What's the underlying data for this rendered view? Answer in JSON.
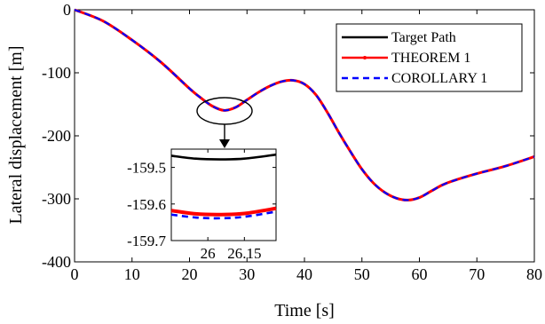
{
  "chart_data": {
    "type": "line",
    "title": "",
    "xlabel": "Time [s]",
    "ylabel": "Lateral displacement [m]",
    "xlim": [
      0,
      80
    ],
    "ylim": [
      -400,
      0
    ],
    "xticks": [
      "0",
      "10",
      "20",
      "30",
      "40",
      "50",
      "60",
      "70",
      "80"
    ],
    "yticks": [
      "0",
      "-100",
      "-200",
      "-300",
      "-400"
    ],
    "grid": false,
    "legend_position": "top-right",
    "x": [
      0,
      5,
      10,
      15,
      20,
      22,
      24,
      26,
      28,
      30,
      32,
      34,
      36,
      38,
      40,
      42,
      44,
      46,
      48,
      50,
      52,
      54,
      56,
      58,
      60,
      62,
      64,
      66,
      70,
      75,
      80
    ],
    "series": [
      {
        "name": "Target Path",
        "color": "#000000",
        "style": "solid",
        "values": [
          0,
          -18,
          -48,
          -83,
          -125,
          -140,
          -153,
          -159.5,
          -155,
          -143,
          -131,
          -121,
          -114,
          -112,
          -118,
          -135,
          -163,
          -195,
          -225,
          -253,
          -275,
          -290,
          -299,
          -302,
          -298,
          -288,
          -278,
          -271,
          -260,
          -248,
          -233
        ]
      },
      {
        "name": "THEOREM 1",
        "color": "#ff0000",
        "style": "solid-marker",
        "values": [
          0,
          -18,
          -48,
          -83,
          -125,
          -140,
          -153,
          -159.6,
          -155,
          -143,
          -131,
          -121,
          -114,
          -112,
          -118,
          -135,
          -163,
          -195,
          -225,
          -253,
          -275,
          -290,
          -299,
          -302,
          -298,
          -288,
          -278,
          -271,
          -260,
          -248,
          -233
        ]
      },
      {
        "name": "COROLLARY 1",
        "color": "#0000ff",
        "style": "dashed",
        "values": [
          0,
          -18,
          -48,
          -83,
          -125,
          -140,
          -153,
          -159.6,
          -155,
          -143,
          -131,
          -121,
          -114,
          -112,
          -118,
          -135,
          -163,
          -195,
          -225,
          -253,
          -275,
          -290,
          -299,
          -302,
          -298,
          -288,
          -278,
          -271,
          -260,
          -248,
          -233
        ]
      }
    ],
    "inset": {
      "xlim": [
        25.85,
        26.28
      ],
      "ylim": [
        -159.7,
        -159.45
      ],
      "xticks": [
        "26",
        "26.15"
      ],
      "yticks": [
        "-159.5",
        "-159.6",
        "-159.7"
      ],
      "x": [
        25.85,
        25.95,
        26.05,
        26.15,
        26.28
      ],
      "series": [
        {
          "name": "Target Path",
          "color": "#000000",
          "style": "solid",
          "values": [
            -159.468,
            -159.476,
            -159.478,
            -159.476,
            -159.465
          ]
        },
        {
          "name": "THEOREM 1",
          "color": "#ff0000",
          "style": "solid",
          "values": [
            -159.618,
            -159.627,
            -159.629,
            -159.626,
            -159.612
          ]
        },
        {
          "name": "COROLLARY 1",
          "color": "#0000ff",
          "style": "dashed",
          "values": [
            -159.629,
            -159.637,
            -159.639,
            -159.635,
            -159.621
          ]
        }
      ]
    }
  }
}
